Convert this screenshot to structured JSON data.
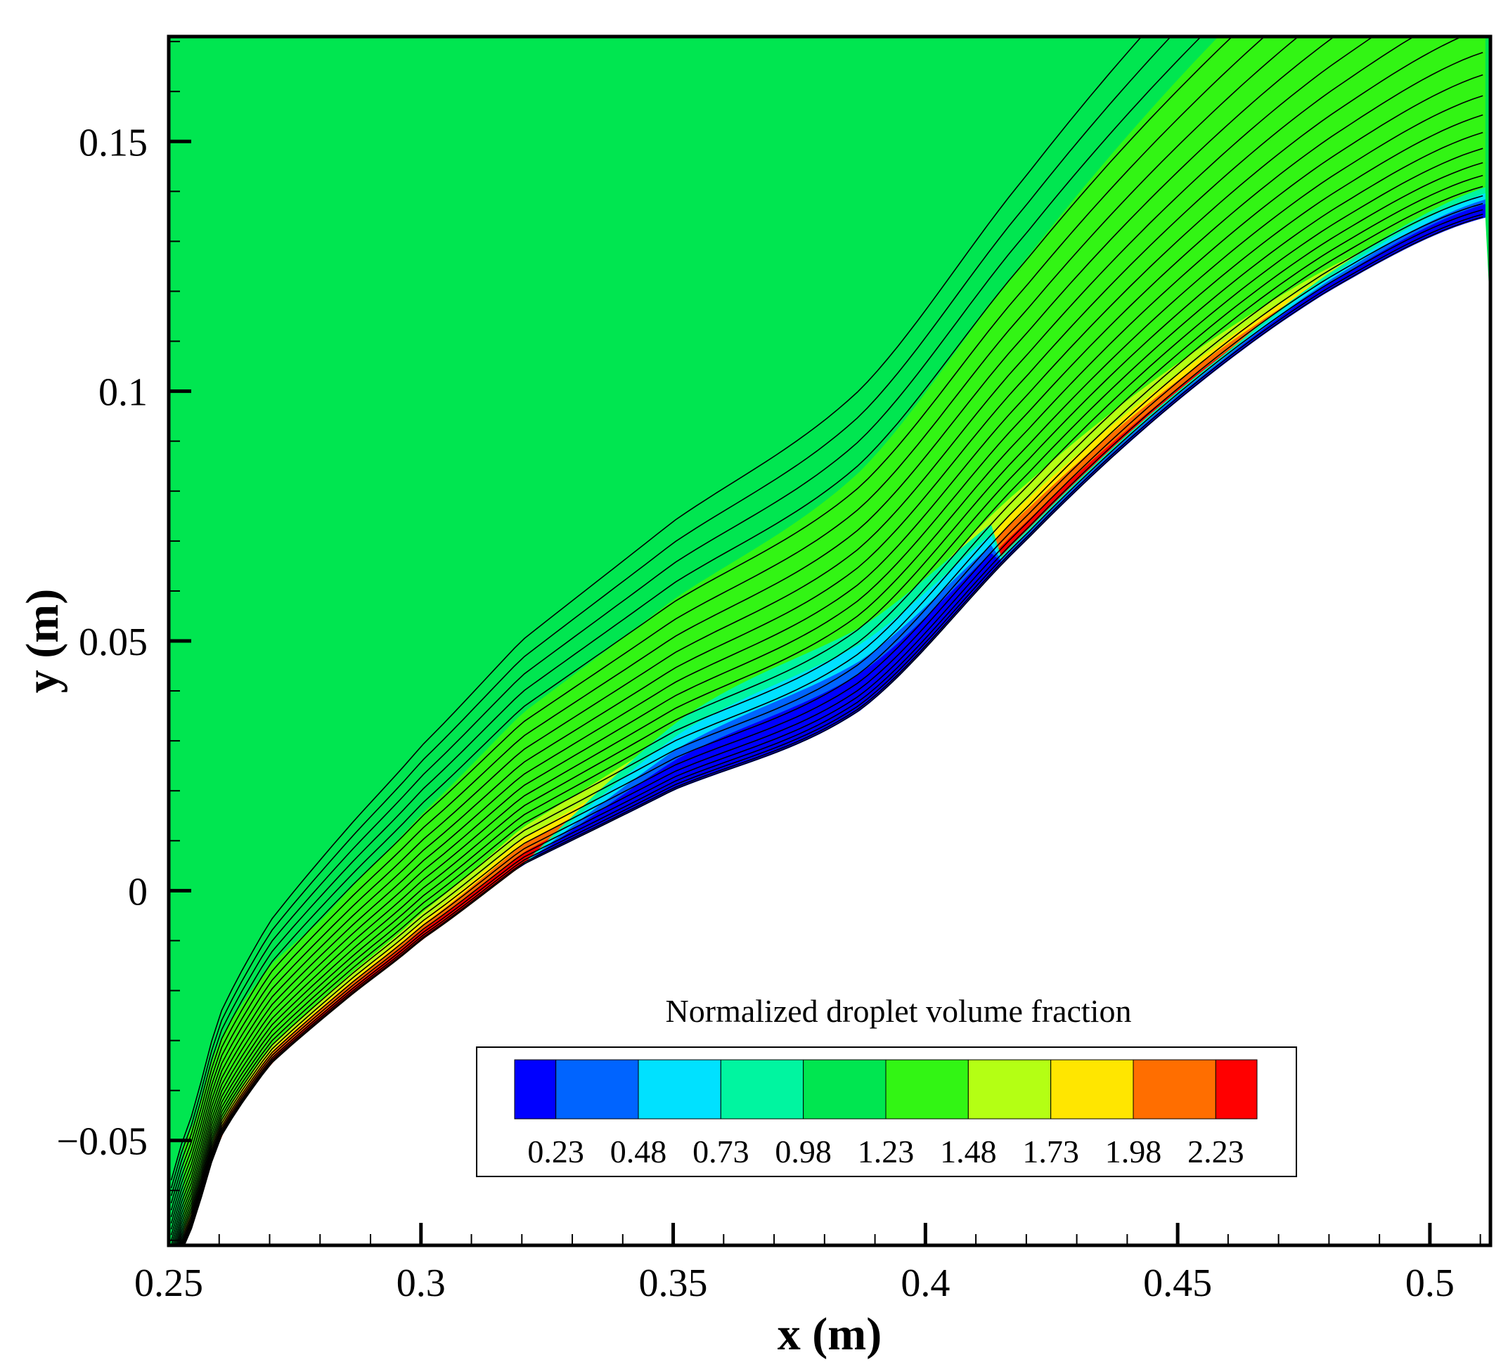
{
  "chart_data": {
    "type": "contour",
    "title": "",
    "xlabel": "x (m)",
    "ylabel": "y (m)",
    "xlim": [
      0.25,
      0.512
    ],
    "ylim": [
      -0.071,
      0.171
    ],
    "x_ticks": [
      {
        "value": 0.25,
        "label": "0.25"
      },
      {
        "value": 0.3,
        "label": "0.3"
      },
      {
        "value": 0.35,
        "label": "0.35"
      },
      {
        "value": 0.4,
        "label": "0.4"
      },
      {
        "value": 0.45,
        "label": "0.45"
      },
      {
        "value": 0.5,
        "label": "0.5"
      }
    ],
    "y_ticks": [
      {
        "value": -0.05,
        "label": "−0.05"
      },
      {
        "value": 0,
        "label": "0"
      },
      {
        "value": 0.05,
        "label": "0.05"
      },
      {
        "value": 0.1,
        "label": "0.1"
      },
      {
        "value": 0.15,
        "label": "0.15"
      }
    ],
    "legend": {
      "title": "Normalized droplet volume fraction",
      "placement": "bottom-right",
      "levels": [
        "0.23",
        "0.48",
        "0.73",
        "0.98",
        "1.23",
        "1.48",
        "1.73",
        "1.98",
        "2.23"
      ],
      "colors": [
        "#0000ff",
        "#0064ff",
        "#00e1ff",
        "#00f5a0",
        "#00e650",
        "#32f514",
        "#b4ff14",
        "#ffe600",
        "#ff6e00",
        "#ff0000"
      ]
    },
    "field": {
      "background_level_color": "#00e650",
      "band_level_color": "#32f514",
      "surface_boundary": [
        [
          0.253,
          -0.071
        ],
        [
          0.26,
          -0.05
        ],
        [
          0.27,
          -0.035
        ],
        [
          0.285,
          -0.022
        ],
        [
          0.3,
          -0.01
        ],
        [
          0.32,
          0.005
        ],
        [
          0.35,
          0.02
        ],
        [
          0.387,
          0.036
        ],
        [
          0.42,
          0.07
        ],
        [
          0.45,
          0.098
        ],
        [
          0.48,
          0.12
        ],
        [
          0.512,
          0.135
        ]
      ],
      "streamline_count": 24
    }
  }
}
